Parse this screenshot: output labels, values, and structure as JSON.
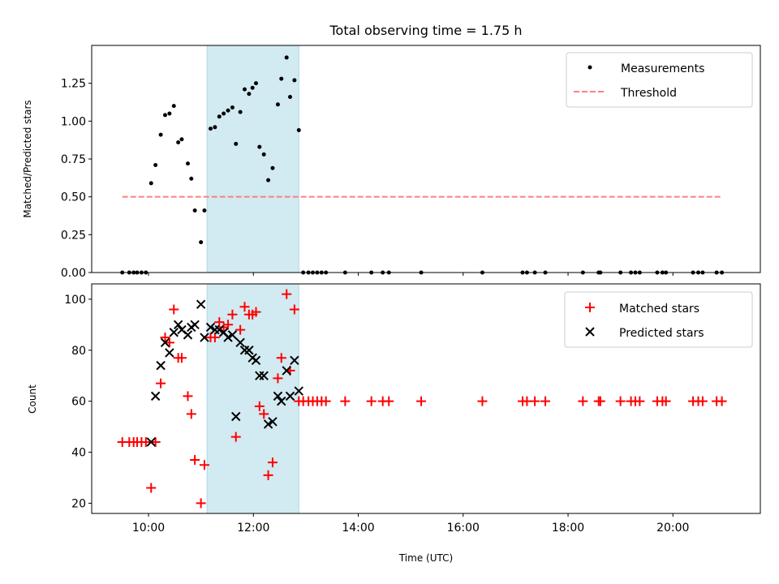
{
  "figure": {
    "title": "Total observing time = 1.75 h",
    "shaded_color": "#add8e6",
    "shaded_range": [
      "11:07",
      "12:52"
    ]
  },
  "chart_data": [
    {
      "type": "scatter",
      "panel": "top",
      "ylabel": "Matched/Predicted stars",
      "xlabel": "",
      "xlim": [
        "08:55",
        "21:40"
      ],
      "ylim": [
        0,
        1.5
      ],
      "yticks": [
        0.0,
        0.25,
        0.5,
        0.75,
        1.0,
        1.25
      ],
      "ytick_labels": [
        "0.00",
        "0.25",
        "0.50",
        "0.75",
        "1.00",
        "1.25"
      ],
      "legend_position": "top-right",
      "series": [
        {
          "name": "Measurements",
          "kind": "scatter",
          "color": "#000000",
          "points": [
            [
              "09:30",
              0
            ],
            [
              "09:38",
              0
            ],
            [
              "09:43",
              0
            ],
            [
              "09:47",
              0
            ],
            [
              "09:52",
              0
            ],
            [
              "09:57",
              0
            ],
            [
              "10:03",
              0.59
            ],
            [
              "10:08",
              0.71
            ],
            [
              "10:14",
              0.91
            ],
            [
              "10:19",
              1.04
            ],
            [
              "10:24",
              1.05
            ],
            [
              "10:29",
              1.1
            ],
            [
              "10:34",
              0.86
            ],
            [
              "10:38",
              0.88
            ],
            [
              "10:45",
              0.72
            ],
            [
              "10:49",
              0.62
            ],
            [
              "10:53",
              0.41
            ],
            [
              "11:00",
              0.2
            ],
            [
              "11:04",
              0.41
            ],
            [
              "11:11",
              0.95
            ],
            [
              "11:16",
              0.96
            ],
            [
              "11:21",
              1.03
            ],
            [
              "11:26",
              1.05
            ],
            [
              "11:31",
              1.07
            ],
            [
              "11:36",
              1.09
            ],
            [
              "11:40",
              0.85
            ],
            [
              "11:45",
              1.06
            ],
            [
              "11:50",
              1.21
            ],
            [
              "11:55",
              1.18
            ],
            [
              "11:59",
              1.22
            ],
            [
              "12:03",
              1.25
            ],
            [
              "12:07",
              0.83
            ],
            [
              "12:12",
              0.78
            ],
            [
              "12:17",
              0.61
            ],
            [
              "12:22",
              0.69
            ],
            [
              "12:28",
              1.11
            ],
            [
              "12:32",
              1.28
            ],
            [
              "12:38",
              1.42
            ],
            [
              "12:42",
              1.16
            ],
            [
              "12:47",
              1.27
            ],
            [
              "12:52",
              0.94
            ],
            [
              "12:57",
              0
            ],
            [
              "13:03",
              0
            ],
            [
              "13:08",
              0
            ],
            [
              "13:13",
              0
            ],
            [
              "13:18",
              0
            ],
            [
              "13:23",
              0
            ],
            [
              "13:45",
              0
            ],
            [
              "14:15",
              0
            ],
            [
              "14:28",
              0
            ],
            [
              "14:35",
              0
            ],
            [
              "15:12",
              0
            ],
            [
              "16:22",
              0
            ],
            [
              "17:08",
              0
            ],
            [
              "17:13",
              0
            ],
            [
              "17:22",
              0
            ],
            [
              "17:34",
              0
            ],
            [
              "18:17",
              0
            ],
            [
              "18:35",
              0
            ],
            [
              "18:37",
              0
            ],
            [
              "19:00",
              0
            ],
            [
              "19:12",
              0
            ],
            [
              "19:17",
              0
            ],
            [
              "19:22",
              0
            ],
            [
              "19:42",
              0
            ],
            [
              "19:48",
              0
            ],
            [
              "19:52",
              0
            ],
            [
              "20:23",
              0
            ],
            [
              "20:29",
              0
            ],
            [
              "20:34",
              0
            ],
            [
              "20:50",
              0
            ],
            [
              "20:56",
              0
            ]
          ]
        },
        {
          "name": "Threshold",
          "kind": "dashed-line",
          "color": "#ff7f7f",
          "points": [
            [
              "09:30",
              0.5
            ],
            [
              "20:56",
              0.5
            ]
          ]
        }
      ]
    },
    {
      "type": "scatter",
      "panel": "bottom",
      "ylabel": "Count",
      "xlabel": "Time (UTC)",
      "xlim": [
        "08:55",
        "21:40"
      ],
      "ylim": [
        16,
        106
      ],
      "xticks": [
        "10:00",
        "12:00",
        "14:00",
        "16:00",
        "18:00",
        "20:00"
      ],
      "yticks": [
        20,
        40,
        60,
        80,
        100
      ],
      "legend_position": "top-right",
      "series": [
        {
          "name": "Matched stars",
          "marker": "plus",
          "color": "#ff0000",
          "points": [
            [
              "09:30",
              44
            ],
            [
              "09:38",
              44
            ],
            [
              "09:43",
              44
            ],
            [
              "09:47",
              44
            ],
            [
              "09:52",
              44
            ],
            [
              "09:57",
              44
            ],
            [
              "10:03",
              26
            ],
            [
              "10:08",
              44
            ],
            [
              "10:14",
              67
            ],
            [
              "10:19",
              85
            ],
            [
              "10:24",
              83
            ],
            [
              "10:29",
              96
            ],
            [
              "10:34",
              77
            ],
            [
              "10:38",
              77
            ],
            [
              "10:45",
              62
            ],
            [
              "10:49",
              55
            ],
            [
              "10:53",
              37
            ],
            [
              "11:00",
              20
            ],
            [
              "11:04",
              35
            ],
            [
              "11:11",
              85
            ],
            [
              "11:16",
              85
            ],
            [
              "11:21",
              91
            ],
            [
              "11:26",
              89
            ],
            [
              "11:31",
              90
            ],
            [
              "11:36",
              94
            ],
            [
              "11:40",
              46
            ],
            [
              "11:45",
              88
            ],
            [
              "11:50",
              97
            ],
            [
              "11:55",
              94
            ],
            [
              "11:59",
              94
            ],
            [
              "12:03",
              95
            ],
            [
              "12:07",
              58
            ],
            [
              "12:12",
              55
            ],
            [
              "12:17",
              31
            ],
            [
              "12:22",
              36
            ],
            [
              "12:28",
              69
            ],
            [
              "12:32",
              77
            ],
            [
              "12:38",
              102
            ],
            [
              "12:42",
              72
            ],
            [
              "12:47",
              96
            ],
            [
              "12:52",
              60
            ],
            [
              "12:57",
              60
            ],
            [
              "13:03",
              60
            ],
            [
              "13:08",
              60
            ],
            [
              "13:13",
              60
            ],
            [
              "13:18",
              60
            ],
            [
              "13:23",
              60
            ],
            [
              "13:45",
              60
            ],
            [
              "14:15",
              60
            ],
            [
              "14:28",
              60
            ],
            [
              "14:35",
              60
            ],
            [
              "15:12",
              60
            ],
            [
              "16:22",
              60
            ],
            [
              "17:08",
              60
            ],
            [
              "17:13",
              60
            ],
            [
              "17:22",
              60
            ],
            [
              "17:34",
              60
            ],
            [
              "18:17",
              60
            ],
            [
              "18:35",
              60
            ],
            [
              "18:37",
              60
            ],
            [
              "19:00",
              60
            ],
            [
              "19:12",
              60
            ],
            [
              "19:17",
              60
            ],
            [
              "19:22",
              60
            ],
            [
              "19:42",
              60
            ],
            [
              "19:48",
              60
            ],
            [
              "19:52",
              60
            ],
            [
              "20:23",
              60
            ],
            [
              "20:29",
              60
            ],
            [
              "20:34",
              60
            ],
            [
              "20:50",
              60
            ],
            [
              "20:56",
              60
            ]
          ]
        },
        {
          "name": "Predicted stars",
          "marker": "x",
          "color": "#000000",
          "points": [
            [
              "10:03",
              44
            ],
            [
              "10:08",
              62
            ],
            [
              "10:14",
              74
            ],
            [
              "10:19",
              83
            ],
            [
              "10:24",
              79
            ],
            [
              "10:29",
              87
            ],
            [
              "10:34",
              90
            ],
            [
              "10:38",
              88
            ],
            [
              "10:45",
              86
            ],
            [
              "10:49",
              89
            ],
            [
              "10:53",
              90
            ],
            [
              "11:00",
              98
            ],
            [
              "11:04",
              85
            ],
            [
              "11:11",
              89
            ],
            [
              "11:16",
              88
            ],
            [
              "11:21",
              88
            ],
            [
              "11:26",
              87
            ],
            [
              "11:31",
              85
            ],
            [
              "11:36",
              86
            ],
            [
              "11:40",
              54
            ],
            [
              "11:45",
              83
            ],
            [
              "11:50",
              80
            ],
            [
              "11:55",
              80
            ],
            [
              "11:59",
              77
            ],
            [
              "12:03",
              76
            ],
            [
              "12:07",
              70
            ],
            [
              "12:12",
              70
            ],
            [
              "12:17",
              51
            ],
            [
              "12:22",
              52
            ],
            [
              "12:28",
              62
            ],
            [
              "12:32",
              60
            ],
            [
              "12:38",
              72
            ],
            [
              "12:42",
              62
            ],
            [
              "12:47",
              76
            ],
            [
              "12:52",
              64
            ]
          ]
        }
      ]
    }
  ]
}
